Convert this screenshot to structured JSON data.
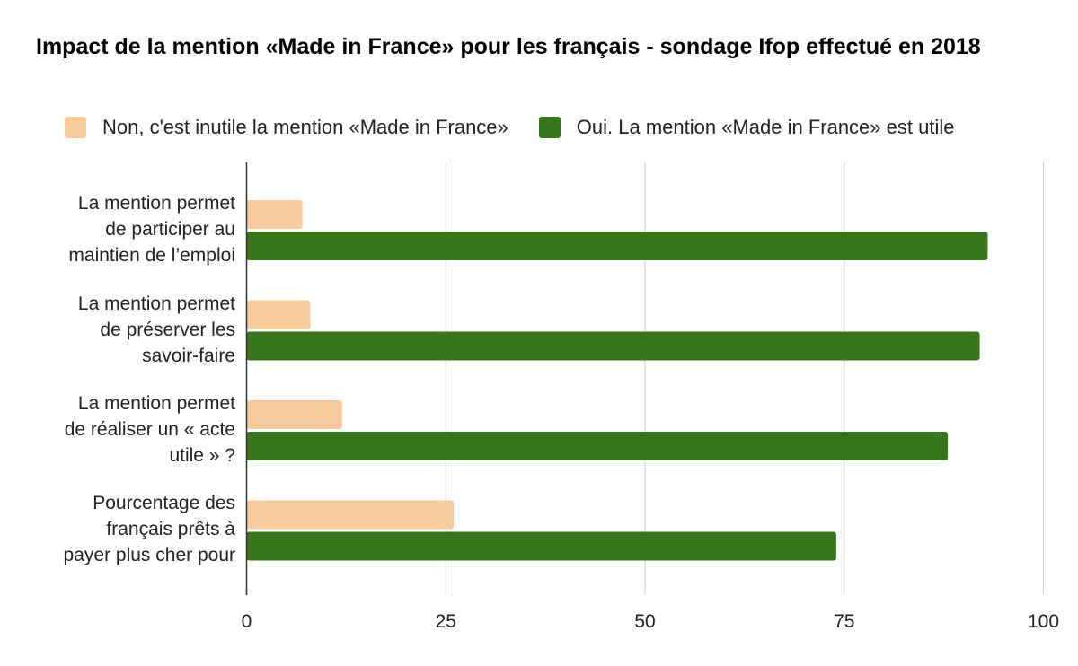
{
  "chart_data": {
    "type": "bar",
    "orientation": "horizontal",
    "title": "Impact de la mention «Made in France» pour les français - sondage Ifop effectué en 2018",
    "categories": [
      [
        "La mention permet",
        "de participer au",
        "maintien de l’emploi"
      ],
      [
        "La mention permet",
        "de préserver les",
        "savoir-faire"
      ],
      [
        "La mention permet",
        "de réaliser un « acte",
        "utile » ?"
      ],
      [
        "Pourcentage des",
        "français prêts à",
        "payer plus cher pour"
      ]
    ],
    "series": [
      {
        "name": "Non, c'est inutile la mention «Made in France»",
        "color": "#f9cb9c",
        "values": [
          7,
          8,
          12,
          26
        ]
      },
      {
        "name": "Oui. La mention «Made in France» est utile",
        "color": "#38761d",
        "values": [
          93,
          92,
          88,
          74
        ]
      }
    ],
    "xlim": [
      0,
      100
    ],
    "xticks": [
      "0",
      "25",
      "50",
      "75",
      "100"
    ],
    "grid": true,
    "legend_position": "top"
  }
}
